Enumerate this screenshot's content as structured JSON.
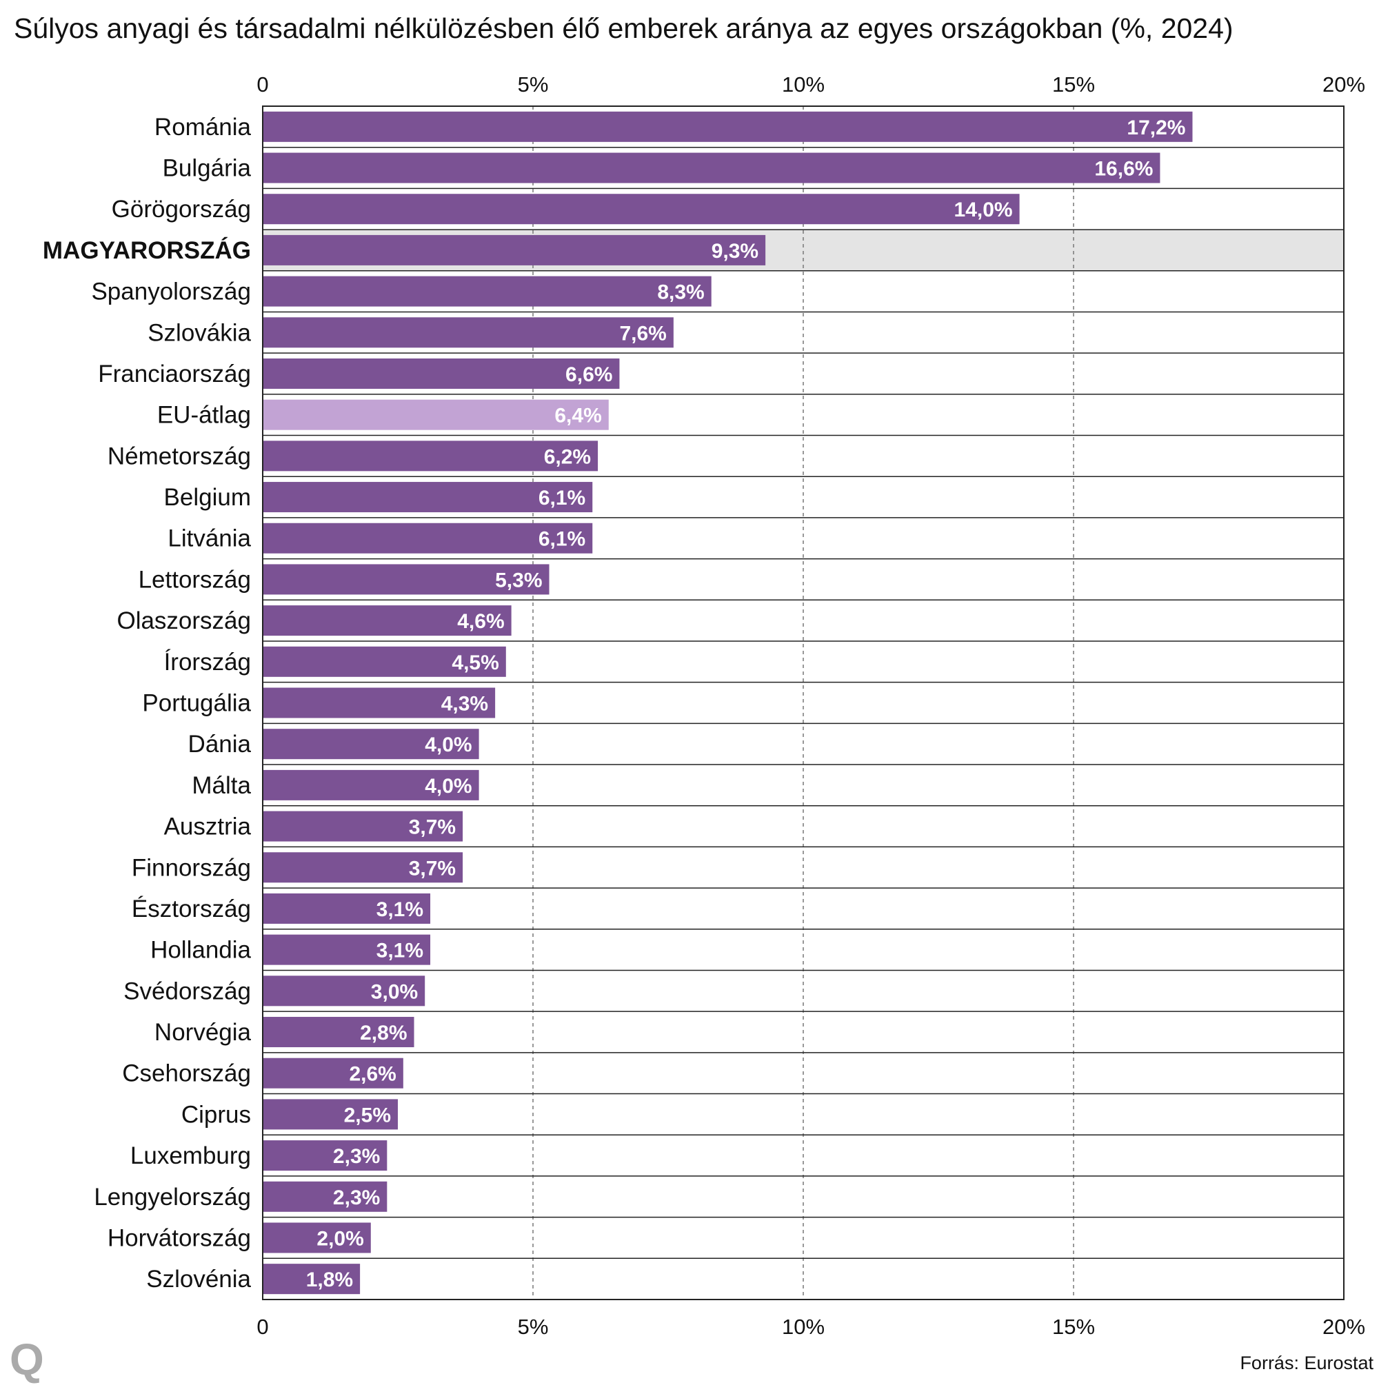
{
  "chart_data": {
    "type": "bar",
    "orientation": "horizontal",
    "title": "Súlyos anyagi és társadalmi nélkülözésben élő emberek aránya az egyes országokban (%, 2024)",
    "categories": [
      "Románia",
      "Bulgária",
      "Görögország",
      "MAGYARORSZÁG",
      "Spanyolország",
      "Szlovákia",
      "Franciaország",
      "EU-átlag",
      "Németország",
      "Belgium",
      "Litvánia",
      "Lettország",
      "Olaszország",
      "Írország",
      "Portugália",
      "Dánia",
      "Málta",
      "Ausztria",
      "Finnország",
      "Észtország",
      "Hollandia",
      "Svédország",
      "Norvégia",
      "Csehország",
      "Ciprus",
      "Luxemburg",
      "Lengyelország",
      "Horvátország",
      "Szlovénia"
    ],
    "values": [
      17.2,
      16.6,
      14.0,
      9.3,
      8.3,
      7.6,
      6.6,
      6.4,
      6.2,
      6.1,
      6.1,
      5.3,
      4.6,
      4.5,
      4.3,
      4.0,
      4.0,
      3.7,
      3.7,
      3.1,
      3.1,
      3.0,
      2.8,
      2.6,
      2.5,
      2.3,
      2.3,
      2.0,
      1.8
    ],
    "value_labels": [
      "17,2%",
      "16,6%",
      "14,0%",
      "9,3%",
      "8,3%",
      "7,6%",
      "6,6%",
      "6,4%",
      "6,2%",
      "6,1%",
      "6,1%",
      "5,3%",
      "4,6%",
      "4,5%",
      "4,3%",
      "4,0%",
      "4,0%",
      "3,7%",
      "3,7%",
      "3,1%",
      "3,1%",
      "3,0%",
      "2,8%",
      "2,6%",
      "2,5%",
      "2,3%",
      "2,3%",
      "2,0%",
      "1,8%"
    ],
    "xlim": [
      0,
      20
    ],
    "xticks": [
      0,
      5,
      10,
      15,
      20
    ],
    "xtick_labels": [
      "0",
      "5%",
      "10%",
      "15%",
      "20%"
    ],
    "highlight_category": "MAGYARORSZÁG",
    "average_category": "EU-átlag",
    "grid": "vertical dashed",
    "colors": {
      "bar": "#7b5294",
      "average": "#c2a3d4",
      "highlight_bg": "#e4e4e4"
    }
  },
  "logo_text": "Q",
  "source": "Forrás: Eurostat"
}
